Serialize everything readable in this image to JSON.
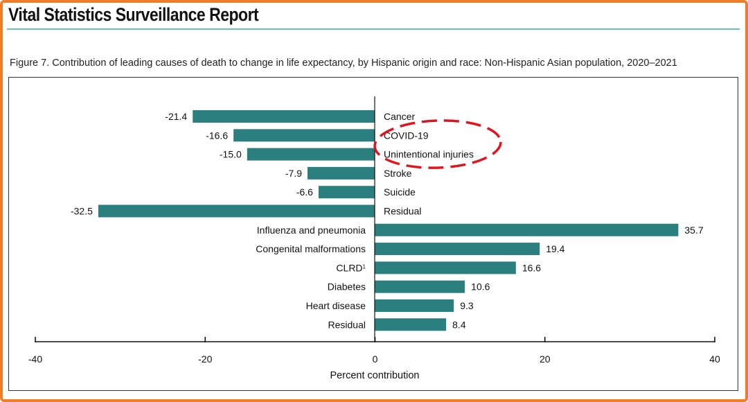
{
  "header": {
    "report_title": "Vital Statistics Surveillance Report",
    "figure_caption": "Figure 7. Contribution of leading causes of death to change in life expectancy, by Hispanic origin and race: Non-Hispanic Asian population, 2020–2021"
  },
  "colors": {
    "bar": "#2b7f7f",
    "frame": "#ef7d2a",
    "rule": "#6fbfb9",
    "annotation": "#e0141e"
  },
  "chart_data": {
    "type": "bar",
    "orientation": "horizontal",
    "categories": [
      "Cancer",
      "COVID-19",
      "Unintentional injuries",
      "Stroke",
      "Suicide",
      "Residual",
      "Influenza and pneumonia",
      "Congenital malformations",
      "CLRD",
      "Diabetes",
      "Heart disease",
      "Residual"
    ],
    "category_superscripts": [
      "",
      "",
      "",
      "",
      "",
      "",
      "",
      "",
      "1",
      "",
      "",
      ""
    ],
    "values": [
      -21.4,
      -16.6,
      -15.0,
      -7.9,
      -6.6,
      -32.5,
      35.7,
      19.4,
      16.6,
      10.6,
      9.3,
      8.4
    ],
    "value_labels": [
      "-21.4",
      "-16.6",
      "-15.0",
      "-7.9",
      "-6.6",
      "-32.5",
      "35.7",
      "19.4",
      "16.6",
      "10.6",
      "9.3",
      "8.4"
    ],
    "xlabel": "Percent contribution",
    "ylabel": "",
    "xlim": [
      -40,
      40
    ],
    "xticks": [
      -40,
      -20,
      0,
      20,
      40
    ],
    "xtick_labels": [
      "-40",
      "-20",
      "0",
      "20",
      "40"
    ],
    "annotation": "red dashed ellipse highlighting COVID-19 and Unintentional injuries"
  }
}
